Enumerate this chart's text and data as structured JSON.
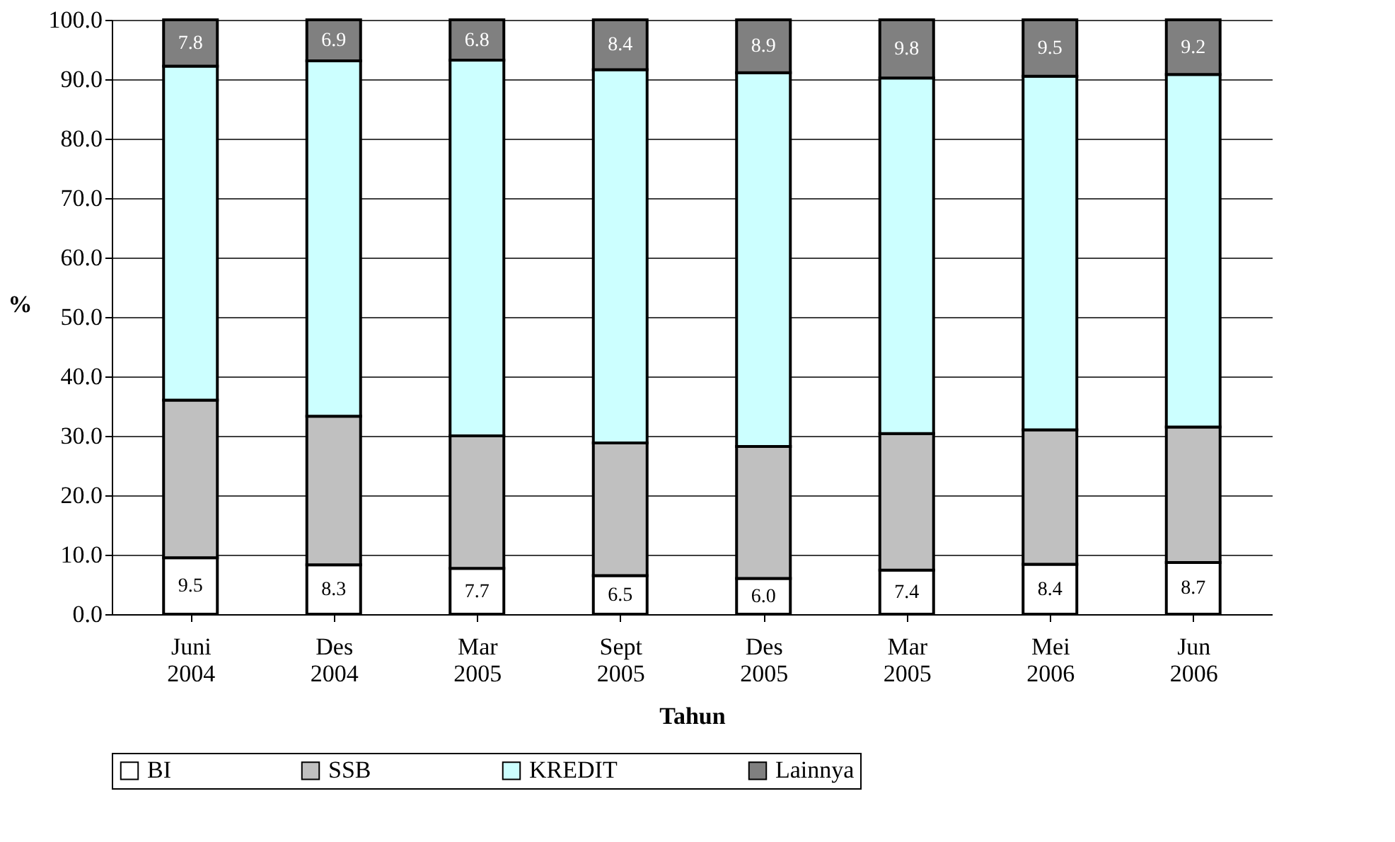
{
  "chart_data": {
    "type": "bar",
    "stacked": true,
    "xlabel": "Tahun",
    "ylabel": "%",
    "categories": [
      "Juni 2004",
      "Des 2004",
      "Mar 2005",
      "Sept 2005",
      "Des 2005",
      "Mar 2005",
      "Mei 2006",
      "Jun 2006"
    ],
    "series": [
      {
        "name": "BI",
        "color": "#ffffff",
        "values": [
          9.5,
          8.3,
          7.7,
          6.5,
          6.0,
          7.4,
          8.4,
          8.7
        ],
        "value_labels": [
          "9.5",
          "8.3",
          "7.7",
          "6.5",
          "6.0",
          "7.4",
          "8.4",
          "8.7"
        ]
      },
      {
        "name": "SSB",
        "color": "#c0c0c0",
        "values": [
          26.5,
          25.0,
          22.3,
          22.3,
          22.2,
          23.0,
          22.6,
          22.8
        ]
      },
      {
        "name": "KREDIT",
        "color": "#ccffff",
        "values": [
          56.2,
          59.8,
          63.2,
          62.8,
          62.9,
          59.8,
          59.5,
          59.3
        ]
      },
      {
        "name": "Lainnya",
        "color": "#808080",
        "values": [
          7.8,
          6.9,
          6.8,
          8.4,
          8.9,
          9.8,
          9.5,
          9.2
        ],
        "value_labels": [
          "7.8",
          "6.9",
          "6.8",
          "8.4",
          "8.9",
          "9.8",
          "9.5",
          "9.2"
        ]
      }
    ],
    "ylim": [
      0,
      100
    ],
    "yticks": [
      {
        "value": 0,
        "label": "0.0"
      },
      {
        "value": 10,
        "label": "10.0"
      },
      {
        "value": 20,
        "label": "20.0"
      },
      {
        "value": 30,
        "label": "30.0"
      },
      {
        "value": 40,
        "label": "40.0"
      },
      {
        "value": 50,
        "label": "50.0"
      },
      {
        "value": 60,
        "label": "60.0"
      },
      {
        "value": 70,
        "label": "70.0"
      },
      {
        "value": 80,
        "label": "80.0"
      },
      {
        "value": 90,
        "label": "90.0"
      },
      {
        "value": 100,
        "label": "100.0"
      }
    ],
    "grid": "y",
    "legend": "bottom"
  }
}
